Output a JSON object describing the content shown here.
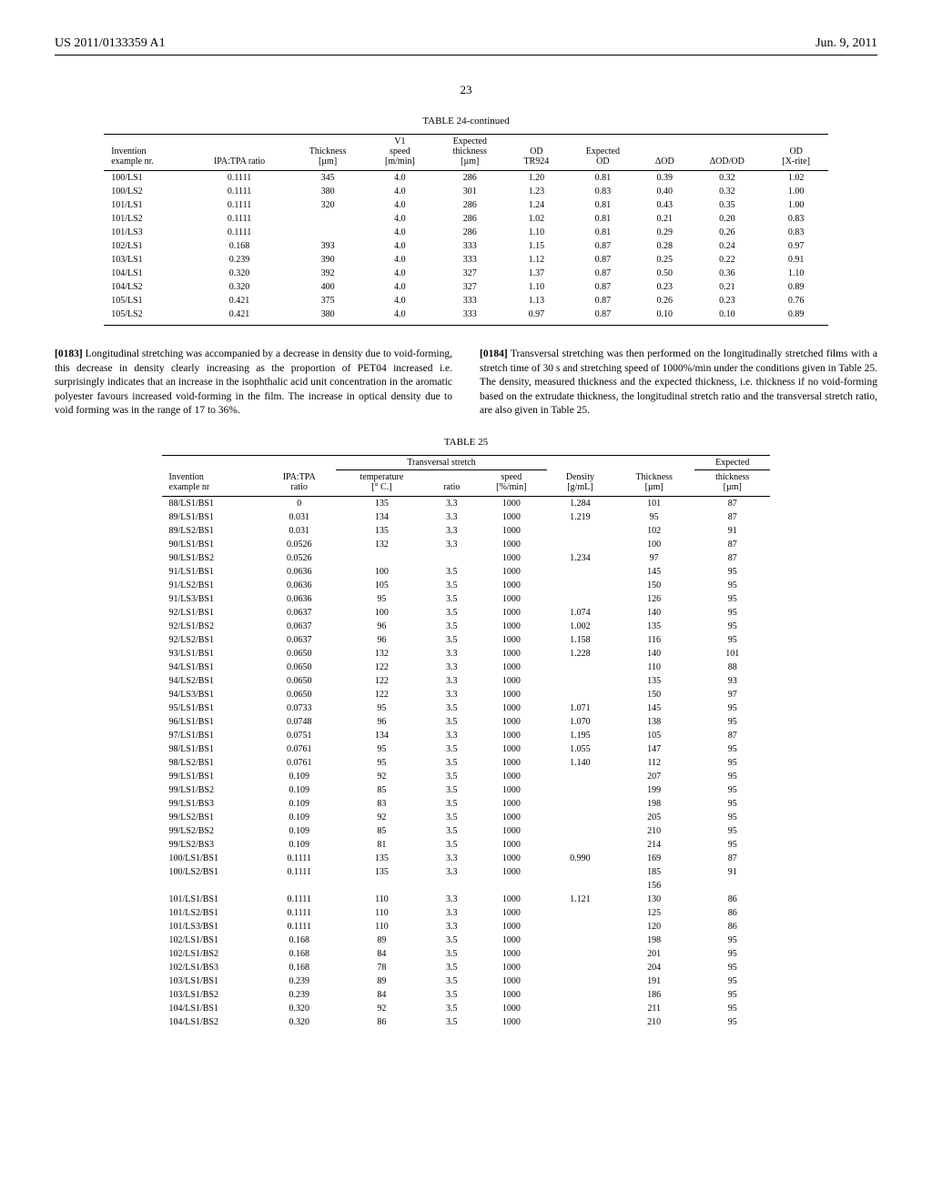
{
  "header": {
    "left": "US 2011/0133359 A1",
    "right": "Jun. 9, 2011"
  },
  "page_number": "23",
  "table24": {
    "title": "TABLE 24-continued",
    "columns": [
      "Invention example nr.",
      "IPA:TPA ratio",
      "Thickness [µm]",
      "V1 speed [m/min]",
      "Expected thickness [µm]",
      "OD TR924",
      "Expected OD",
      "ΔOD",
      "ΔOD/OD",
      "OD [X-rite]"
    ],
    "rows": [
      [
        "100/LS1",
        "0.1111",
        "345",
        "4.0",
        "286",
        "1.20",
        "0.81",
        "0.39",
        "0.32",
        "1.02"
      ],
      [
        "100/LS2",
        "0.1111",
        "380",
        "4.0",
        "301",
        "1.23",
        "0.83",
        "0.40",
        "0.32",
        "1.00"
      ],
      [
        "101/LS1",
        "0.1111",
        "320",
        "4.0",
        "286",
        "1.24",
        "0.81",
        "0.43",
        "0.35",
        "1.00"
      ],
      [
        "101/LS2",
        "0.1111",
        "",
        "4.0",
        "286",
        "1.02",
        "0.81",
        "0.21",
        "0.20",
        "0.83"
      ],
      [
        "101/LS3",
        "0.1111",
        "",
        "4.0",
        "286",
        "1.10",
        "0.81",
        "0.29",
        "0.26",
        "0.83"
      ],
      [
        "102/LS1",
        "0.168",
        "393",
        "4.0",
        "333",
        "1.15",
        "0.87",
        "0.28",
        "0.24",
        "0.97"
      ],
      [
        "103/LS1",
        "0.239",
        "390",
        "4.0",
        "333",
        "1.12",
        "0.87",
        "0.25",
        "0.22",
        "0.91"
      ],
      [
        "104/LS1",
        "0.320",
        "392",
        "4.0",
        "327",
        "1.37",
        "0.87",
        "0.50",
        "0.36",
        "1.10"
      ],
      [
        "104/LS2",
        "0.320",
        "400",
        "4.0",
        "327",
        "1.10",
        "0.87",
        "0.23",
        "0.21",
        "0.89"
      ],
      [
        "105/LS1",
        "0.421",
        "375",
        "4.0",
        "333",
        "1.13",
        "0.87",
        "0.26",
        "0.23",
        "0.76"
      ],
      [
        "105/LS2",
        "0.421",
        "380",
        "4.0",
        "333",
        "0.97",
        "0.87",
        "0.10",
        "0.10",
        "0.89"
      ]
    ]
  },
  "paragraphs": {
    "p1_num": "[0183]",
    "p1_text": "Longitudinal stretching was accompanied by a decrease in density due to void-forming, this decrease in density clearly increasing as the proportion of PET04 increased i.e. surprisingly indicates that an increase in the isophthalic acid unit concentration in the aromatic polyester favours increased void-forming in the film. The increase in optical density due to void forming was in the range of 17 to 36%.",
    "p2_num": "[0184]",
    "p2_text": "Transversal stretching was then performed on the longitudinally stretched films with a stretch time of 30 s and stretching speed of 1000%/min under the conditions given in Table 25. The density, measured thickness and the expected thickness, i.e. thickness if no void-forming based on the extrudate thickness, the longitudinal stretch ratio and the transversal stretch ratio, are also given in Table 25."
  },
  "table25": {
    "title": "TABLE 25",
    "group_header": "Transversal stretch",
    "expected_header": "Expected",
    "columns": [
      "Invention example nr",
      "IPA:TPA ratio",
      "temperature [° C.]",
      "ratio",
      "speed [%/min]",
      "Density [g/mL]",
      "Thickness [µm]",
      "thickness [µm]"
    ],
    "rows": [
      [
        "88/LS1/BS1",
        "0",
        "135",
        "3.3",
        "1000",
        "1.284",
        "101",
        "87"
      ],
      [
        "89/LS1/BS1",
        "0.031",
        "134",
        "3.3",
        "1000",
        "1.219",
        "95",
        "87"
      ],
      [
        "89/LS2/BS1",
        "0.031",
        "135",
        "3.3",
        "1000",
        "",
        "102",
        "91"
      ],
      [
        "90/LS1/BS1",
        "0.0526",
        "132",
        "3.3",
        "1000",
        "",
        "100",
        "87"
      ],
      [
        "90/LS1/BS2",
        "0.0526",
        "",
        "",
        "1000",
        "1.234",
        "97",
        "87"
      ],
      [
        "91/LS1/BS1",
        "0.0636",
        "100",
        "3.5",
        "1000",
        "",
        "145",
        "95"
      ],
      [
        "91/LS2/BS1",
        "0.0636",
        "105",
        "3.5",
        "1000",
        "",
        "150",
        "95"
      ],
      [
        "91/LS3/BS1",
        "0.0636",
        "95",
        "3.5",
        "1000",
        "",
        "126",
        "95"
      ],
      [
        "92/LS1/BS1",
        "0.0637",
        "100",
        "3.5",
        "1000",
        "1.074",
        "140",
        "95"
      ],
      [
        "92/LS1/BS2",
        "0.0637",
        "96",
        "3.5",
        "1000",
        "1.002",
        "135",
        "95"
      ],
      [
        "92/LS2/BS1",
        "0.0637",
        "96",
        "3.5",
        "1000",
        "1.158",
        "116",
        "95"
      ],
      [
        "93/LS1/BS1",
        "0.0650",
        "132",
        "3.3",
        "1000",
        "1.228",
        "140",
        "101"
      ],
      [
        "94/LS1/BS1",
        "0.0650",
        "122",
        "3.3",
        "1000",
        "",
        "110",
        "88"
      ],
      [
        "94/LS2/BS1",
        "0.0650",
        "122",
        "3.3",
        "1000",
        "",
        "135",
        "93"
      ],
      [
        "94/LS3/BS1",
        "0.0650",
        "122",
        "3.3",
        "1000",
        "",
        "150",
        "97"
      ],
      [
        "95/LS1/BS1",
        "0.0733",
        "95",
        "3.5",
        "1000",
        "1.071",
        "145",
        "95"
      ],
      [
        "96/LS1/BS1",
        "0.0748",
        "96",
        "3.5",
        "1000",
        "1.070",
        "138",
        "95"
      ],
      [
        "97/LS1/BS1",
        "0.0751",
        "134",
        "3.3",
        "1000",
        "1.195",
        "105",
        "87"
      ],
      [
        "98/LS1/BS1",
        "0.0761",
        "95",
        "3.5",
        "1000",
        "1.055",
        "147",
        "95"
      ],
      [
        "98/LS2/BS1",
        "0.0761",
        "95",
        "3.5",
        "1000",
        "1.140",
        "112",
        "95"
      ],
      [
        "99/LS1/BS1",
        "0.109",
        "92",
        "3.5",
        "1000",
        "",
        "207",
        "95"
      ],
      [
        "99/LS1/BS2",
        "0.109",
        "85",
        "3.5",
        "1000",
        "",
        "199",
        "95"
      ],
      [
        "99/LS1/BS3",
        "0.109",
        "83",
        "3.5",
        "1000",
        "",
        "198",
        "95"
      ],
      [
        "99/LS2/BS1",
        "0.109",
        "92",
        "3.5",
        "1000",
        "",
        "205",
        "95"
      ],
      [
        "99/LS2/BS2",
        "0.109",
        "85",
        "3.5",
        "1000",
        "",
        "210",
        "95"
      ],
      [
        "99/LS2/BS3",
        "0.109",
        "81",
        "3.5",
        "1000",
        "",
        "214",
        "95"
      ],
      [
        "100/LS1/BS1",
        "0.1111",
        "135",
        "3.3",
        "1000",
        "0.990",
        "169",
        "87"
      ],
      [
        "100/LS2/BS1",
        "0.1111",
        "135",
        "3.3",
        "1000",
        "",
        "185",
        "91"
      ],
      [
        "",
        "",
        "",
        "",
        "",
        "",
        "156",
        ""
      ],
      [
        "101/LS1/BS1",
        "0.1111",
        "110",
        "3.3",
        "1000",
        "1.121",
        "130",
        "86"
      ],
      [
        "101/LS2/BS1",
        "0.1111",
        "110",
        "3.3",
        "1000",
        "",
        "125",
        "86"
      ],
      [
        "101/LS3/BS1",
        "0.1111",
        "110",
        "3.3",
        "1000",
        "",
        "120",
        "86"
      ],
      [
        "102/LS1/BS1",
        "0.168",
        "89",
        "3.5",
        "1000",
        "",
        "198",
        "95"
      ],
      [
        "102/LS1/BS2",
        "0.168",
        "84",
        "3.5",
        "1000",
        "",
        "201",
        "95"
      ],
      [
        "102/LS1/BS3",
        "0.168",
        "78",
        "3.5",
        "1000",
        "",
        "204",
        "95"
      ],
      [
        "103/LS1/BS1",
        "0.239",
        "89",
        "3.5",
        "1000",
        "",
        "191",
        "95"
      ],
      [
        "103/LS1/BS2",
        "0.239",
        "84",
        "3.5",
        "1000",
        "",
        "186",
        "95"
      ],
      [
        "104/LS1/BS1",
        "0.320",
        "92",
        "3.5",
        "1000",
        "",
        "211",
        "95"
      ],
      [
        "104/LS1/BS2",
        "0.320",
        "86",
        "3.5",
        "1000",
        "",
        "210",
        "95"
      ]
    ]
  }
}
